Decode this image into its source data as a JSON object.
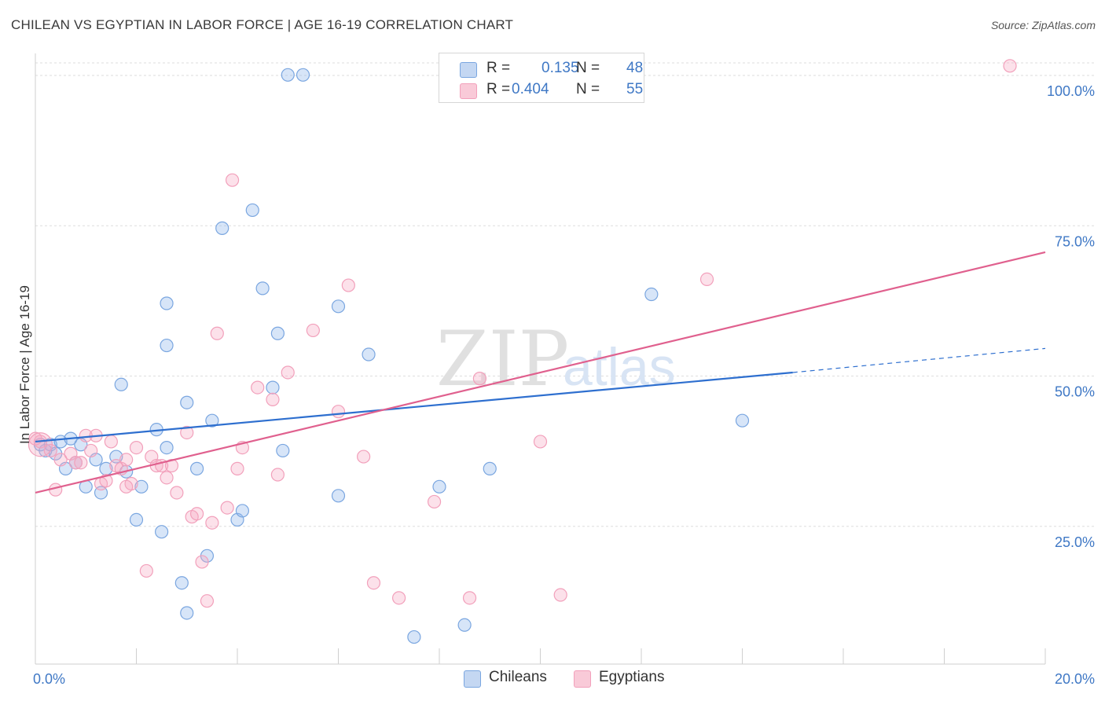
{
  "title": "CHILEAN VS EGYPTIAN IN LABOR FORCE | AGE 16-19 CORRELATION CHART",
  "source": "Source: ZipAtlas.com",
  "watermark": {
    "zip": "ZIP",
    "atlas": "atlas"
  },
  "legend": {
    "r_label": "R =",
    "n_label": "N =",
    "rows": [
      {
        "r": "0.135",
        "n": "48"
      },
      {
        "r": "0.404",
        "n": "55"
      }
    ]
  },
  "bottom_legend": [
    "Chileans",
    "Egyptians"
  ],
  "chart_data": {
    "type": "scatter",
    "title": "CHILEAN VS EGYPTIAN IN LABOR FORCE | AGE 16-19 CORRELATION CHART",
    "xlabel": "",
    "ylabel": "In Labor Force | Age 16-19",
    "xlim": [
      0,
      20
    ],
    "ylim": [
      0,
      100
    ],
    "x_tick_labels": [
      "0.0%",
      "20.0%"
    ],
    "y_tick_labels": [
      "100.0%",
      "75.0%",
      "50.0%",
      "25.0%"
    ],
    "y_ticks": [
      100,
      75,
      50,
      25
    ],
    "grid": true,
    "legend_position": "top-center",
    "colors": {
      "chileans": "#7aa6e0",
      "egyptians": "#f2a0bb",
      "chileans_line": "#2e6fcf",
      "egyptians_line": "#e0608e"
    },
    "series": [
      {
        "name": "Chileans",
        "r": 0.135,
        "n": 48,
        "trend": {
          "x0": 0,
          "y0": 37.0,
          "x1": 15,
          "y1": 48.5,
          "dashed_to_x": 20,
          "dashed_to_y": 52.5
        },
        "points": [
          [
            0.1,
            36.5
          ],
          [
            0.2,
            35.5
          ],
          [
            0.3,
            36.5
          ],
          [
            0.4,
            35.0
          ],
          [
            0.5,
            37.0
          ],
          [
            0.6,
            32.5
          ],
          [
            0.7,
            37.5
          ],
          [
            0.8,
            33.5
          ],
          [
            0.9,
            36.5
          ],
          [
            1.0,
            29.5
          ],
          [
            1.2,
            34.0
          ],
          [
            1.3,
            28.5
          ],
          [
            1.4,
            32.5
          ],
          [
            1.6,
            34.5
          ],
          [
            1.7,
            46.5
          ],
          [
            1.8,
            32.0
          ],
          [
            2.0,
            24.0
          ],
          [
            2.1,
            29.5
          ],
          [
            2.5,
            22.0
          ],
          [
            2.6,
            36.0
          ],
          [
            2.9,
            13.5
          ],
          [
            3.0,
            8.5
          ],
          [
            3.2,
            32.5
          ],
          [
            3.4,
            18.0
          ],
          [
            3.5,
            40.5
          ],
          [
            3.7,
            72.5
          ],
          [
            4.0,
            24.0
          ],
          [
            4.1,
            25.5
          ],
          [
            4.3,
            75.5
          ],
          [
            4.5,
            62.5
          ],
          [
            4.7,
            46.0
          ],
          [
            4.8,
            55.0
          ],
          [
            4.9,
            35.5
          ],
          [
            5.0,
            98.0
          ],
          [
            5.3,
            98.0
          ],
          [
            6.0,
            59.5
          ],
          [
            6.0,
            28.0
          ],
          [
            6.6,
            51.5
          ],
          [
            7.5,
            4.5
          ],
          [
            8.0,
            29.5
          ],
          [
            8.5,
            6.5
          ],
          [
            9.0,
            32.5
          ],
          [
            12.2,
            61.5
          ],
          [
            14.0,
            40.5
          ],
          [
            2.6,
            53.0
          ],
          [
            3.0,
            43.5
          ],
          [
            2.4,
            39.0
          ],
          [
            2.6,
            60.0
          ]
        ]
      },
      {
        "name": "Egyptians",
        "r": 0.404,
        "n": 55,
        "trend": {
          "x0": 0,
          "y0": 28.5,
          "x1": 20,
          "y1": 68.5
        },
        "points": [
          [
            0.1,
            37.0
          ],
          [
            0.3,
            35.5
          ],
          [
            0.4,
            29.0
          ],
          [
            0.5,
            34.0
          ],
          [
            0.7,
            35.0
          ],
          [
            0.8,
            33.5
          ],
          [
            1.0,
            38.0
          ],
          [
            1.1,
            35.5
          ],
          [
            1.2,
            38.0
          ],
          [
            1.3,
            30.0
          ],
          [
            1.4,
            30.5
          ],
          [
            1.5,
            37.0
          ],
          [
            1.6,
            33.0
          ],
          [
            1.7,
            32.5
          ],
          [
            1.8,
            34.0
          ],
          [
            1.9,
            30.0
          ],
          [
            2.0,
            36.0
          ],
          [
            2.2,
            15.5
          ],
          [
            2.3,
            34.5
          ],
          [
            2.4,
            33.0
          ],
          [
            2.5,
            33.0
          ],
          [
            2.6,
            31.0
          ],
          [
            2.7,
            33.0
          ],
          [
            2.8,
            28.5
          ],
          [
            3.0,
            38.5
          ],
          [
            3.1,
            24.5
          ],
          [
            3.2,
            25.0
          ],
          [
            3.3,
            17.0
          ],
          [
            3.4,
            10.5
          ],
          [
            3.5,
            23.5
          ],
          [
            3.6,
            55.0
          ],
          [
            3.8,
            26.0
          ],
          [
            3.9,
            80.5
          ],
          [
            4.0,
            32.5
          ],
          [
            4.1,
            36.0
          ],
          [
            4.4,
            46.0
          ],
          [
            4.7,
            44.0
          ],
          [
            4.8,
            31.5
          ],
          [
            5.0,
            48.5
          ],
          [
            5.5,
            55.5
          ],
          [
            6.0,
            42.0
          ],
          [
            6.2,
            63.0
          ],
          [
            6.5,
            34.5
          ],
          [
            6.7,
            13.5
          ],
          [
            7.2,
            11.0
          ],
          [
            7.9,
            27.0
          ],
          [
            8.8,
            47.5
          ],
          [
            8.6,
            11.0
          ],
          [
            10.0,
            37.0
          ],
          [
            10.4,
            11.5
          ],
          [
            13.3,
            64.0
          ],
          [
            19.3,
            99.5
          ],
          [
            0.0,
            37.5
          ],
          [
            0.9,
            33.5
          ],
          [
            1.8,
            29.5
          ]
        ]
      }
    ]
  }
}
